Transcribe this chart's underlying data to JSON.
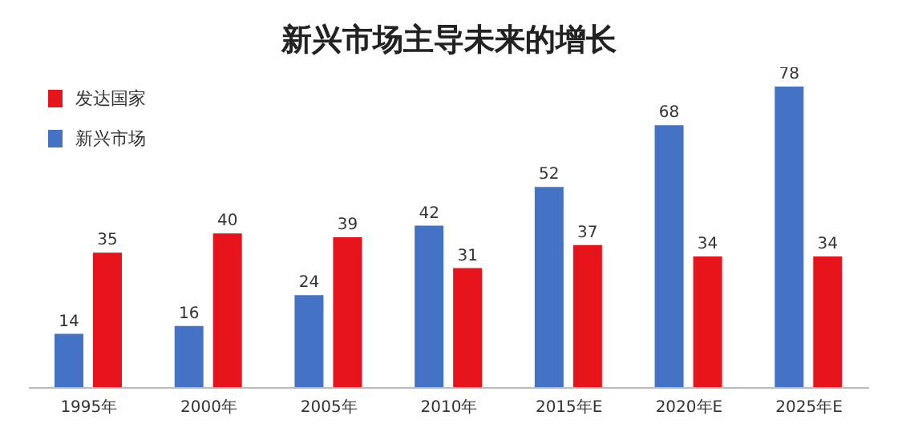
{
  "chart_data": {
    "type": "bar",
    "title": "新兴市场主导未来的增长",
    "categories": [
      "1995年",
      "2000年",
      "2005年",
      "2010年",
      "2015年E",
      "2020年E",
      "2025年E"
    ],
    "series": [
      {
        "name": "新兴市场",
        "color": "#4472c4",
        "values": [
          14,
          16,
          24,
          42,
          52,
          68,
          78
        ]
      },
      {
        "name": "发达国家",
        "color": "#e8141b",
        "values": [
          35,
          40,
          39,
          31,
          37,
          34,
          34
        ]
      }
    ],
    "data_labels": true,
    "legend": "top left",
    "grid": false
  }
}
